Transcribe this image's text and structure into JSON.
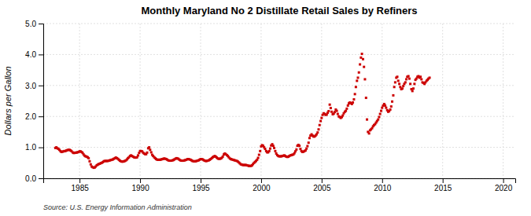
{
  "chart_data": {
    "type": "scatter",
    "title": "Monthly Maryland No 2 Distillate Retail Sales by Refiners",
    "ylabel": "Dollars per Gallon",
    "annotation": "Source: U.S. Energy Information Administration",
    "color": "#cc0000",
    "marker": "square",
    "grid": true,
    "xlim": [
      1982,
      2021
    ],
    "ylim": [
      0.0,
      5.0
    ],
    "xticks": [
      1985,
      1990,
      1995,
      2000,
      2005,
      2010,
      2015,
      2020
    ],
    "yticks": [
      {
        "value": 0.0,
        "label": "0.0"
      },
      {
        "value": 1.0,
        "label": "1.0"
      },
      {
        "value": 2.0,
        "label": "2.0"
      },
      {
        "value": 3.0,
        "label": "3.0"
      },
      {
        "value": 4.0,
        "label": "4.0"
      },
      {
        "value": 5.0,
        "label": "5.0"
      }
    ],
    "x": [
      1983.0,
      1983.08,
      1983.17,
      1983.25,
      1983.33,
      1983.42,
      1983.5,
      1983.58,
      1983.67,
      1983.75,
      1983.83,
      1983.92,
      1984.0,
      1984.08,
      1984.17,
      1984.25,
      1984.33,
      1984.42,
      1984.5,
      1984.58,
      1984.67,
      1984.75,
      1984.83,
      1984.92,
      1985.0,
      1985.08,
      1985.17,
      1985.25,
      1985.33,
      1985.42,
      1985.5,
      1985.58,
      1985.67,
      1985.75,
      1985.83,
      1985.92,
      1986.0,
      1986.08,
      1986.17,
      1986.25,
      1986.33,
      1986.42,
      1986.5,
      1986.58,
      1986.67,
      1986.75,
      1986.83,
      1986.92,
      1987.0,
      1987.08,
      1987.17,
      1987.25,
      1987.33,
      1987.42,
      1987.5,
      1987.58,
      1987.67,
      1987.75,
      1987.83,
      1987.92,
      1988.0,
      1988.08,
      1988.17,
      1988.25,
      1988.33,
      1988.42,
      1988.5,
      1988.58,
      1988.67,
      1988.75,
      1988.83,
      1988.92,
      1989.0,
      1989.08,
      1989.17,
      1989.25,
      1989.33,
      1989.42,
      1989.5,
      1989.58,
      1989.67,
      1989.75,
      1989.83,
      1989.92,
      1990.0,
      1990.08,
      1990.17,
      1990.25,
      1990.33,
      1990.42,
      1990.5,
      1990.58,
      1990.67,
      1990.75,
      1990.83,
      1990.92,
      1991.0,
      1991.08,
      1991.17,
      1991.25,
      1991.33,
      1991.42,
      1991.5,
      1991.58,
      1991.67,
      1991.75,
      1991.83,
      1991.92,
      1992.0,
      1992.08,
      1992.17,
      1992.25,
      1992.33,
      1992.42,
      1992.5,
      1992.58,
      1992.67,
      1992.75,
      1992.83,
      1992.92,
      1993.0,
      1993.08,
      1993.17,
      1993.25,
      1993.33,
      1993.42,
      1993.5,
      1993.58,
      1993.67,
      1993.75,
      1993.83,
      1993.92,
      1994.0,
      1994.08,
      1994.17,
      1994.25,
      1994.33,
      1994.42,
      1994.5,
      1994.58,
      1994.67,
      1994.75,
      1994.83,
      1994.92,
      1995.0,
      1995.08,
      1995.17,
      1995.25,
      1995.33,
      1995.42,
      1995.5,
      1995.58,
      1995.67,
      1995.75,
      1995.83,
      1995.92,
      1996.0,
      1996.08,
      1996.17,
      1996.25,
      1996.33,
      1996.42,
      1996.5,
      1996.58,
      1996.67,
      1996.75,
      1996.83,
      1996.92,
      1997.0,
      1997.08,
      1997.17,
      1997.25,
      1997.33,
      1997.42,
      1997.5,
      1997.58,
      1997.67,
      1997.75,
      1997.83,
      1997.92,
      1998.0,
      1998.08,
      1998.17,
      1998.25,
      1998.33,
      1998.42,
      1998.5,
      1998.58,
      1998.67,
      1998.75,
      1998.83,
      1998.92,
      1999.0,
      1999.08,
      1999.17,
      1999.25,
      1999.33,
      1999.42,
      1999.5,
      1999.58,
      1999.67,
      1999.75,
      1999.83,
      1999.92,
      2000.0,
      2000.08,
      2000.17,
      2000.25,
      2000.33,
      2000.42,
      2000.5,
      2000.58,
      2000.67,
      2000.75,
      2000.83,
      2000.92,
      2001.0,
      2001.08,
      2001.17,
      2001.25,
      2001.33,
      2001.42,
      2001.5,
      2001.58,
      2001.67,
      2001.75,
      2001.83,
      2001.92,
      2002.0,
      2002.08,
      2002.17,
      2002.25,
      2002.33,
      2002.42,
      2002.5,
      2002.58,
      2002.67,
      2002.75,
      2002.83,
      2002.92,
      2003.0,
      2003.08,
      2003.17,
      2003.25,
      2003.33,
      2003.42,
      2003.5,
      2003.58,
      2003.67,
      2003.75,
      2003.83,
      2003.92,
      2004.0,
      2004.08,
      2004.17,
      2004.25,
      2004.33,
      2004.42,
      2004.5,
      2004.58,
      2004.67,
      2004.75,
      2004.83,
      2004.92,
      2005.0,
      2005.08,
      2005.17,
      2005.25,
      2005.33,
      2005.42,
      2005.5,
      2005.58,
      2005.67,
      2005.75,
      2005.83,
      2005.92,
      2006.0,
      2006.08,
      2006.17,
      2006.25,
      2006.33,
      2006.42,
      2006.5,
      2006.58,
      2006.67,
      2006.75,
      2006.83,
      2006.92,
      2007.0,
      2007.08,
      2007.17,
      2007.25,
      2007.33,
      2007.42,
      2007.5,
      2007.58,
      2007.67,
      2007.75,
      2007.83,
      2007.92,
      2008.0,
      2008.08,
      2008.17,
      2008.25,
      2008.33,
      2008.42,
      2008.5,
      2008.58,
      2008.67,
      2008.75,
      2008.83,
      2008.92,
      2009.0,
      2009.08,
      2009.17,
      2009.25,
      2009.33,
      2009.42,
      2009.5,
      2009.58,
      2009.67,
      2009.75,
      2009.83,
      2009.92,
      2010.0,
      2010.08,
      2010.17,
      2010.25,
      2010.33,
      2010.42,
      2010.5,
      2010.58,
      2010.67,
      2010.75,
      2010.83,
      2010.92,
      2011.0,
      2011.08,
      2011.17,
      2011.25,
      2011.33,
      2011.42,
      2011.5,
      2011.58,
      2011.67,
      2011.75,
      2011.83,
      2011.92,
      2012.0,
      2012.08,
      2012.17,
      2012.25,
      2012.33,
      2012.42,
      2012.5,
      2012.58,
      2012.67,
      2012.75,
      2012.83,
      2012.92,
      2013.0,
      2013.08,
      2013.17,
      2013.25,
      2013.33,
      2013.42,
      2013.5,
      2013.58,
      2013.67,
      2013.75,
      2013.83,
      2013.92
    ],
    "values": [
      0.98,
      1.0,
      0.97,
      0.95,
      0.92,
      0.88,
      0.85,
      0.86,
      0.87,
      0.88,
      0.88,
      0.9,
      0.91,
      0.92,
      0.92,
      0.9,
      0.88,
      0.84,
      0.82,
      0.82,
      0.83,
      0.83,
      0.84,
      0.85,
      0.87,
      0.87,
      0.85,
      0.82,
      0.77,
      0.73,
      0.71,
      0.7,
      0.68,
      0.65,
      0.55,
      0.45,
      0.38,
      0.36,
      0.34,
      0.35,
      0.38,
      0.42,
      0.44,
      0.46,
      0.47,
      0.49,
      0.5,
      0.52,
      0.55,
      0.56,
      0.56,
      0.56,
      0.56,
      0.57,
      0.58,
      0.59,
      0.6,
      0.61,
      0.63,
      0.65,
      0.67,
      0.65,
      0.63,
      0.6,
      0.57,
      0.55,
      0.54,
      0.54,
      0.55,
      0.56,
      0.58,
      0.61,
      0.65,
      0.68,
      0.72,
      0.74,
      0.72,
      0.7,
      0.68,
      0.67,
      0.67,
      0.68,
      0.74,
      0.82,
      0.88,
      0.88,
      0.87,
      0.83,
      0.8,
      0.78,
      0.78,
      0.83,
      0.97,
      1.0,
      0.92,
      0.84,
      0.76,
      0.72,
      0.68,
      0.65,
      0.62,
      0.6,
      0.6,
      0.6,
      0.6,
      0.61,
      0.62,
      0.63,
      0.64,
      0.63,
      0.62,
      0.6,
      0.58,
      0.57,
      0.57,
      0.57,
      0.58,
      0.59,
      0.61,
      0.63,
      0.65,
      0.64,
      0.63,
      0.6,
      0.58,
      0.57,
      0.57,
      0.57,
      0.58,
      0.59,
      0.6,
      0.62,
      0.62,
      0.61,
      0.6,
      0.58,
      0.56,
      0.55,
      0.55,
      0.55,
      0.56,
      0.57,
      0.58,
      0.6,
      0.62,
      0.62,
      0.61,
      0.59,
      0.57,
      0.56,
      0.56,
      0.57,
      0.58,
      0.6,
      0.62,
      0.65,
      0.68,
      0.7,
      0.72,
      0.7,
      0.67,
      0.64,
      0.63,
      0.63,
      0.64,
      0.66,
      0.7,
      0.77,
      0.8,
      0.78,
      0.75,
      0.72,
      0.68,
      0.64,
      0.62,
      0.61,
      0.6,
      0.59,
      0.58,
      0.57,
      0.56,
      0.54,
      0.51,
      0.48,
      0.45,
      0.44,
      0.43,
      0.43,
      0.43,
      0.43,
      0.42,
      0.41,
      0.4,
      0.4,
      0.4,
      0.42,
      0.46,
      0.5,
      0.53,
      0.56,
      0.6,
      0.66,
      0.76,
      0.88,
      1.03,
      1.07,
      1.05,
      1.0,
      0.95,
      0.88,
      0.84,
      0.84,
      0.88,
      0.96,
      1.06,
      1.1,
      1.05,
      0.98,
      0.88,
      0.8,
      0.75,
      0.72,
      0.71,
      0.71,
      0.71,
      0.72,
      0.73,
      0.74,
      0.72,
      0.7,
      0.69,
      0.7,
      0.72,
      0.74,
      0.75,
      0.76,
      0.77,
      0.81,
      0.87,
      0.93,
      1.05,
      1.08,
      1.05,
      0.95,
      0.88,
      0.85,
      0.86,
      0.88,
      0.9,
      0.96,
      1.04,
      1.15,
      1.3,
      1.38,
      1.42,
      1.38,
      1.35,
      1.35,
      1.38,
      1.42,
      1.48,
      1.58,
      1.72,
      1.85,
      1.95,
      2.05,
      2.1,
      2.08,
      2.05,
      2.06,
      2.12,
      2.17,
      2.38,
      2.27,
      2.15,
      2.07,
      2.09,
      2.14,
      2.22,
      2.18,
      2.08,
      2.0,
      1.98,
      1.95,
      1.98,
      2.03,
      2.1,
      2.15,
      2.18,
      2.25,
      2.35,
      2.42,
      2.45,
      2.43,
      2.4,
      2.45,
      2.55,
      2.72,
      2.95,
      3.15,
      3.25,
      3.42,
      3.68,
      3.9,
      4.02,
      3.85,
      3.6,
      3.2,
      2.6,
      1.9,
      1.5,
      1.45,
      1.55,
      1.58,
      1.62,
      1.68,
      1.72,
      1.75,
      1.8,
      1.85,
      1.9,
      1.98,
      2.08,
      2.18,
      2.28,
      2.35,
      2.4,
      2.35,
      2.28,
      2.2,
      2.15,
      2.17,
      2.22,
      2.32,
      2.48,
      2.68,
      2.95,
      3.1,
      3.25,
      3.28,
      3.15,
      3.05,
      2.95,
      2.88,
      2.9,
      2.98,
      3.05,
      3.1,
      3.2,
      3.28,
      3.3,
      3.22,
      3.05,
      2.88,
      2.82,
      2.9,
      3.05,
      3.18,
      3.22,
      3.28,
      3.3,
      3.25,
      3.28,
      3.2,
      3.1,
      3.08,
      3.05,
      3.1,
      3.15,
      3.18,
      3.22,
      3.25
    ]
  }
}
